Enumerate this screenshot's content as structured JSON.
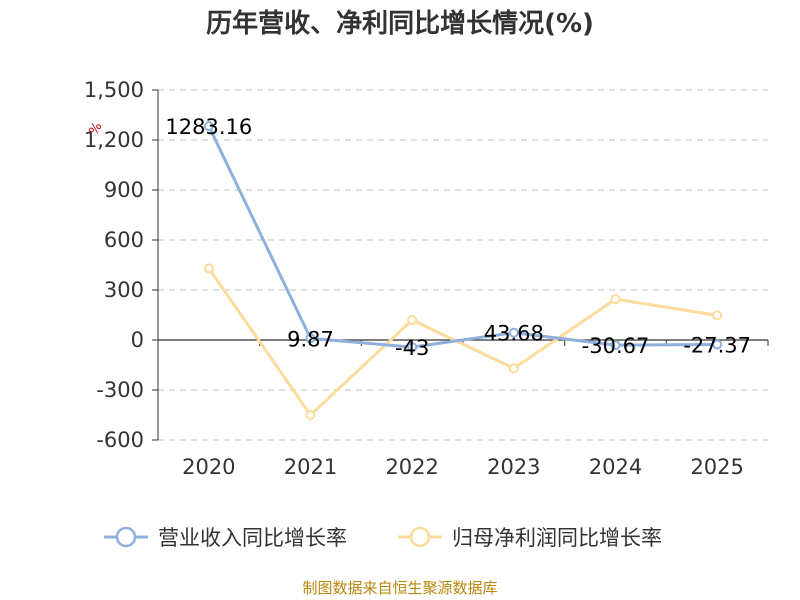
{
  "title": "历年营收、净利同比增长情况(%)",
  "source": "制图数据来自恒生聚源数据库",
  "chart_data": {
    "type": "line",
    "title": "历年营收、净利同比增长情况(%)",
    "xlabel": "",
    "ylabel": "%",
    "categories": [
      "2020",
      "2021",
      "2022",
      "2023",
      "2024",
      "2025"
    ],
    "ylim": [
      -600,
      1500
    ],
    "yticks": [
      "1,500",
      "1,200",
      "900",
      "600",
      "300",
      "0",
      "-300",
      "-600"
    ],
    "ytick_values": [
      1500,
      1200,
      900,
      600,
      300,
      0,
      -300,
      -600
    ],
    "grid": true,
    "legend_position": "bottom",
    "series": [
      {
        "name": "营业收入同比增长率",
        "color": "#8eb0dc",
        "values": [
          1283.16,
          9.87,
          -43,
          43.68,
          -30.67,
          -27.37
        ],
        "labels": [
          "1283.16",
          "9.87",
          "-43",
          "43.68",
          "-30.67",
          "-27.37"
        ]
      },
      {
        "name": "归母净利润同比增长率",
        "color": "#fbdc9c",
        "values": [
          430,
          -450,
          120,
          -170,
          245,
          148
        ]
      }
    ]
  }
}
